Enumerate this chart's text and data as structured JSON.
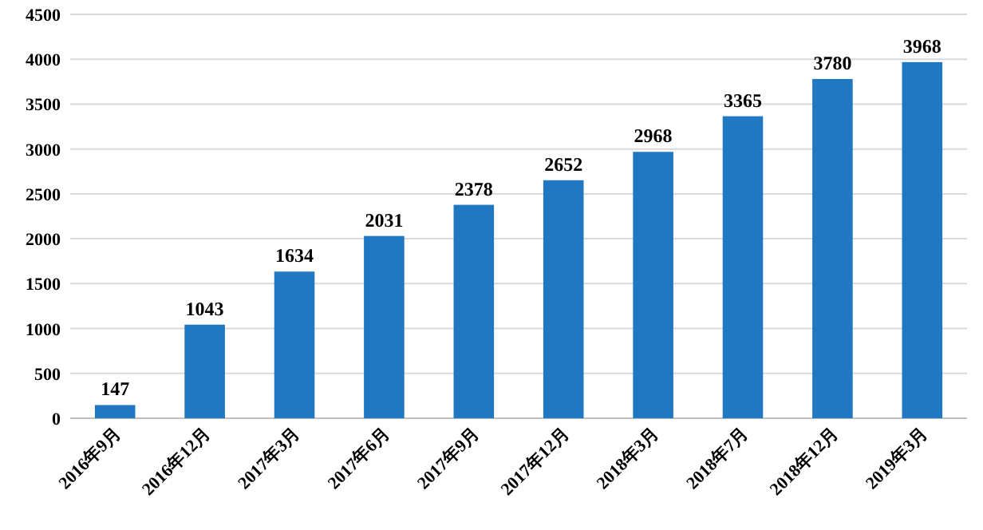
{
  "chart_data": {
    "type": "bar",
    "categories": [
      "2016年9月",
      "2016年12月",
      "2017年3月",
      "2017年6月",
      "2017年9月",
      "2017年12月",
      "2018年3月",
      "2018年7月",
      "2018年12月",
      "2019年3月"
    ],
    "values": [
      147,
      1043,
      1634,
      2031,
      2378,
      2652,
      2968,
      3365,
      3780,
      3968
    ],
    "color": "#1f78c1",
    "ylim": [
      0,
      4500
    ],
    "yticks": [
      0,
      500,
      1000,
      1500,
      2000,
      2500,
      3000,
      3500,
      4000,
      4500
    ],
    "grid": "y",
    "data_labels": true
  }
}
